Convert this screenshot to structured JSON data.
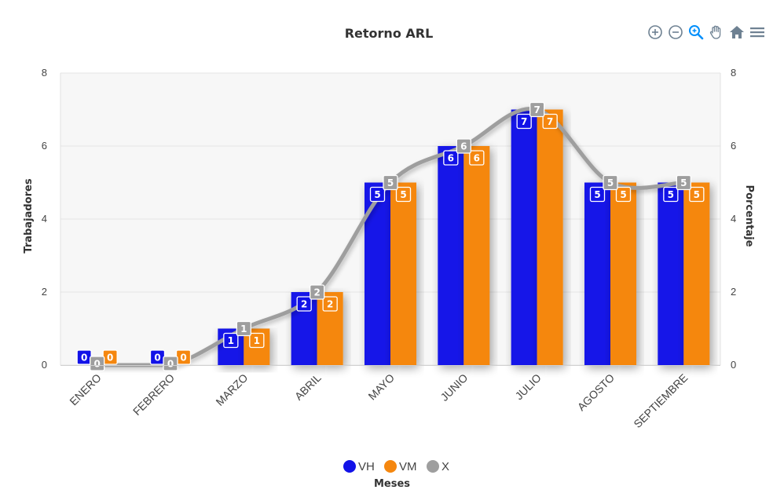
{
  "chart_data": {
    "type": "bar",
    "title": "Retorno ARL",
    "xlabel": "Meses",
    "ylabel": "Trabajadores",
    "y2label": "Porcentaje",
    "ylim": [
      0,
      8
    ],
    "y2lim": [
      0,
      8
    ],
    "yticks": [
      0,
      2,
      4,
      6,
      8
    ],
    "grid": true,
    "legend_position": "bottom",
    "categories": [
      "ENERO",
      "FEBRERO",
      "MARZO",
      "ABRIL",
      "MAYO",
      "JUNIO",
      "JULIO",
      "AGOSTO",
      "SEPTIEMBRE"
    ],
    "series": [
      {
        "name": "VH",
        "type": "bar",
        "color": "#1212e8",
        "values": [
          0,
          0,
          1,
          2,
          5,
          6,
          7,
          5,
          5
        ]
      },
      {
        "name": "VM",
        "type": "bar",
        "color": "#f5870f",
        "values": [
          0,
          0,
          1,
          2,
          5,
          6,
          7,
          5,
          5
        ]
      },
      {
        "name": "X",
        "type": "line",
        "color": "#9e9e9e",
        "values": [
          0,
          0,
          1,
          2,
          5,
          6,
          7,
          5,
          5
        ]
      }
    ]
  },
  "toolbar": {
    "icons": [
      "zoom-in-icon",
      "zoom-out-icon",
      "zoom-select-icon",
      "pan-hand-icon",
      "home-icon",
      "menu-icon"
    ],
    "accent": "#008ffb",
    "icon_color": "#6e8192"
  }
}
